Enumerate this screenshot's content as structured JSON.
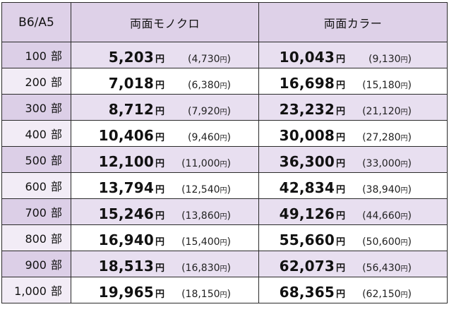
{
  "table": {
    "header": {
      "size": "B6/A5",
      "mono": "両面モノクロ",
      "color": "両面カラー"
    },
    "unit_qty": "部",
    "unit_yen": "円",
    "rows": [
      {
        "qty": "100",
        "mono": "5,203",
        "mono_sub": "4,730",
        "color": "10,043",
        "color_sub": "9,130"
      },
      {
        "qty": "200",
        "mono": "7,018",
        "mono_sub": "6,380",
        "color": "16,698",
        "color_sub": "15,180"
      },
      {
        "qty": "300",
        "mono": "8,712",
        "mono_sub": "7,920",
        "color": "23,232",
        "color_sub": "21,120"
      },
      {
        "qty": "400",
        "mono": "10,406",
        "mono_sub": "9,460",
        "color": "30,008",
        "color_sub": "27,280"
      },
      {
        "qty": "500",
        "mono": "12,100",
        "mono_sub": "11,000",
        "color": "36,300",
        "color_sub": "33,000"
      },
      {
        "qty": "600",
        "mono": "13,794",
        "mono_sub": "12,540",
        "color": "42,834",
        "color_sub": "38,940"
      },
      {
        "qty": "700",
        "mono": "15,246",
        "mono_sub": "13,860",
        "color": "49,126",
        "color_sub": "44,660"
      },
      {
        "qty": "800",
        "mono": "16,940",
        "mono_sub": "15,400",
        "color": "55,660",
        "color_sub": "50,600"
      },
      {
        "qty": "900",
        "mono": "18,513",
        "mono_sub": "16,830",
        "color": "62,073",
        "color_sub": "56,430"
      },
      {
        "qty": "1,000",
        "mono": "19,965",
        "mono_sub": "18,150",
        "color": "68,365",
        "color_sub": "62,150"
      }
    ]
  }
}
